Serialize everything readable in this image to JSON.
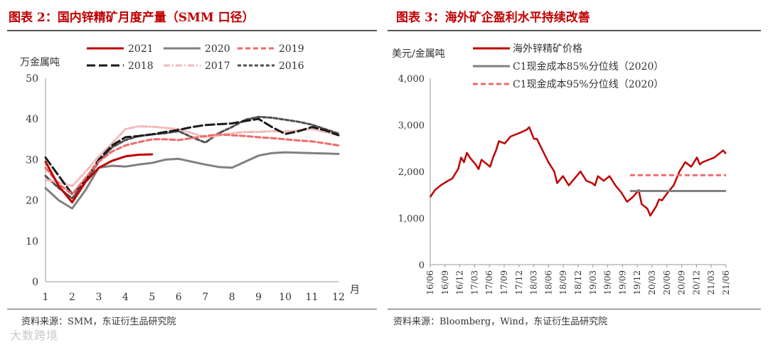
{
  "left": {
    "title": "图表 2：国内锌精矿月度产量（SMM 口径）",
    "source": "资料来源：SMM，东证衍生品研究院",
    "chart_data": {
      "type": "line",
      "title": "国内锌精矿月度产量（SMM 口径）",
      "ylabel": "万金属吨",
      "xlabel": "月",
      "ylim": [
        0,
        50
      ],
      "yticks": [
        0,
        10,
        20,
        30,
        40,
        50
      ],
      "xlim": [
        1,
        12
      ],
      "xticks": [
        "1",
        "2",
        "3",
        "4",
        "5",
        "6",
        "7",
        "8",
        "9",
        "10",
        "11",
        "12"
      ],
      "series": [
        {
          "name": "2021",
          "color": "#c00000",
          "dash": "solid",
          "x": [
            1,
            1.5,
            2,
            2.5,
            3,
            3.5,
            4,
            4.5,
            5
          ],
          "values": [
            29.5,
            23.5,
            19.5,
            24.5,
            28,
            29.7,
            30.8,
            31.2,
            31.3
          ]
        },
        {
          "name": "2020",
          "color": "#808080",
          "dash": "solid",
          "x": [
            1,
            1.5,
            2,
            2.5,
            3,
            3.5,
            4,
            4.5,
            5,
            5.5,
            6,
            6.5,
            7,
            7.5,
            8,
            8.5,
            9,
            9.5,
            10,
            10.5,
            11,
            11.5,
            12
          ],
          "values": [
            23,
            20,
            18,
            22.5,
            28,
            28.5,
            28.3,
            28.8,
            29.2,
            30,
            30.2,
            29.5,
            28.8,
            28.2,
            28,
            29.5,
            31,
            31.6,
            31.8,
            31.7,
            31.6,
            31.5,
            31.4
          ]
        },
        {
          "name": "2019",
          "color": "#ee6b6b",
          "dash": "dash",
          "x": [
            1,
            1.5,
            2,
            2.5,
            3,
            3.5,
            4,
            4.5,
            5,
            5.5,
            6,
            6.5,
            7,
            7.5,
            8,
            8.5,
            9,
            9.5,
            10,
            10.5,
            11,
            11.5,
            12
          ],
          "values": [
            28,
            24,
            21.5,
            25.5,
            29.5,
            32,
            33.5,
            34.3,
            35,
            35,
            34.8,
            35.3,
            35.8,
            36.2,
            36,
            35.8,
            35.5,
            35.3,
            35,
            34.7,
            34.5,
            34,
            33.5
          ]
        },
        {
          "name": "2018",
          "color": "#1a1a1a",
          "dash": "longdash",
          "x": [
            1,
            1.5,
            2,
            2.5,
            3,
            3.5,
            4,
            4.5,
            5,
            5.5,
            6,
            6.5,
            7,
            7.5,
            8,
            8.5,
            9,
            9.5,
            10,
            10.5,
            11,
            11.5,
            12
          ],
          "values": [
            30.5,
            26,
            21.5,
            25,
            30,
            33.5,
            35.5,
            35.8,
            36.2,
            36.8,
            37.3,
            38,
            38.5,
            38.7,
            38.9,
            39.5,
            40,
            38,
            36.3,
            37,
            38,
            37.2,
            36
          ]
        },
        {
          "name": "2017",
          "color": "#f4b8b8",
          "dash": "dashdot",
          "x": [
            1,
            1.5,
            2,
            2.5,
            3,
            3.5,
            4,
            4.5,
            5,
            5.5,
            6,
            6.5,
            7,
            7.5,
            8,
            8.5,
            9,
            9.5,
            10,
            10.5,
            11,
            11.5,
            12
          ],
          "values": [
            25,
            24.5,
            23.5,
            27,
            30.8,
            34,
            37.5,
            38.2,
            38.1,
            37.8,
            37.5,
            36.5,
            35.5,
            35.9,
            36.5,
            36.8,
            36.8,
            37,
            36.9,
            37.2,
            37.5,
            36.8,
            36
          ]
        },
        {
          "name": "2016",
          "color": "#505050",
          "dash": "shortdash",
          "x": [
            1,
            1.5,
            2,
            2.5,
            3,
            3.5,
            4,
            4.5,
            5,
            5.5,
            6,
            6.5,
            7,
            7.5,
            8,
            8.5,
            9,
            9.5,
            10,
            10.5,
            11,
            11.5,
            12
          ],
          "values": [
            26,
            23,
            20.5,
            24.5,
            29.5,
            33,
            34.8,
            35.8,
            36.2,
            36.5,
            37,
            35.5,
            34.2,
            36.5,
            38,
            39.8,
            40.5,
            40.3,
            39.8,
            39.3,
            38.6,
            37.5,
            36.4
          ]
        }
      ]
    }
  },
  "right": {
    "title": "图表 3：海外矿企盈利水平持续改善",
    "source": "资料来源：Bloomberg，Wind，东证衍生品研究院",
    "chart_data": {
      "type": "line",
      "title": "海外矿企盈利水平持续改善",
      "ylabel": "美元/金属吨",
      "ylim": [
        0,
        4000
      ],
      "yticks": [
        "0",
        "1,000",
        "2,000",
        "3,000",
        "4,000"
      ],
      "ytick_values": [
        0,
        1000,
        2000,
        3000,
        4000
      ],
      "xlim": [
        2016.42,
        2021.5
      ],
      "xticks": [
        "16/06",
        "16/09",
        "16/12",
        "17/03",
        "17/06",
        "17/09",
        "17/12",
        "18/03",
        "18/06",
        "18/09",
        "18/12",
        "19/03",
        "19/06",
        "19/09",
        "19/12",
        "20/03",
        "20/06",
        "20/09",
        "20/12",
        "21/03",
        "21/06"
      ],
      "series": [
        {
          "name": "海外锌精矿价格",
          "color": "#c00000",
          "dash": "solid",
          "x": [
            2016.42,
            2016.5,
            2016.6,
            2016.7,
            2016.8,
            2016.9,
            2016.95,
            2017.0,
            2017.05,
            2017.1,
            2017.2,
            2017.25,
            2017.3,
            2017.4,
            2017.45,
            2017.5,
            2017.55,
            2017.6,
            2017.7,
            2017.8,
            2017.9,
            2018.0,
            2018.08,
            2018.12,
            2018.2,
            2018.25,
            2018.35,
            2018.45,
            2018.55,
            2018.6,
            2018.7,
            2018.8,
            2018.9,
            2019.0,
            2019.1,
            2019.2,
            2019.25,
            2019.3,
            2019.4,
            2019.5,
            2019.6,
            2019.7,
            2019.75,
            2019.8,
            2019.9,
            2020.0,
            2020.05,
            2020.1,
            2020.15,
            2020.2,
            2020.25,
            2020.3,
            2020.35,
            2020.4,
            2020.5,
            2020.6,
            2020.7,
            2020.8,
            2020.9,
            2021.0,
            2021.05,
            2021.1,
            2021.2,
            2021.3,
            2021.4,
            2021.45,
            2021.5
          ],
          "values": [
            1450,
            1600,
            1700,
            1780,
            1850,
            2050,
            2300,
            2200,
            2400,
            2300,
            2150,
            2050,
            2250,
            2150,
            2100,
            2300,
            2450,
            2650,
            2600,
            2750,
            2800,
            2850,
            2900,
            2950,
            2700,
            2700,
            2450,
            2200,
            2000,
            1750,
            1900,
            1700,
            1850,
            2000,
            1800,
            1750,
            1700,
            1900,
            1800,
            1900,
            1700,
            1550,
            1450,
            1350,
            1450,
            1600,
            1300,
            1250,
            1200,
            1050,
            1150,
            1250,
            1400,
            1380,
            1550,
            1700,
            2000,
            2200,
            2100,
            2300,
            2150,
            2200,
            2250,
            2300,
            2400,
            2450,
            2380
          ]
        },
        {
          "name": "C1现金成本85%分位线（2020）",
          "color": "#808080",
          "dash": "solid",
          "x": [
            2019.85,
            2021.5
          ],
          "values": [
            1580,
            1580
          ]
        },
        {
          "name": "C1现金成本95%分位线（2020）",
          "color": "#ee6b6b",
          "dash": "dash",
          "x": [
            2019.85,
            2021.5
          ],
          "values": [
            1920,
            1920
          ]
        }
      ]
    }
  },
  "watermark": "大数跨境"
}
